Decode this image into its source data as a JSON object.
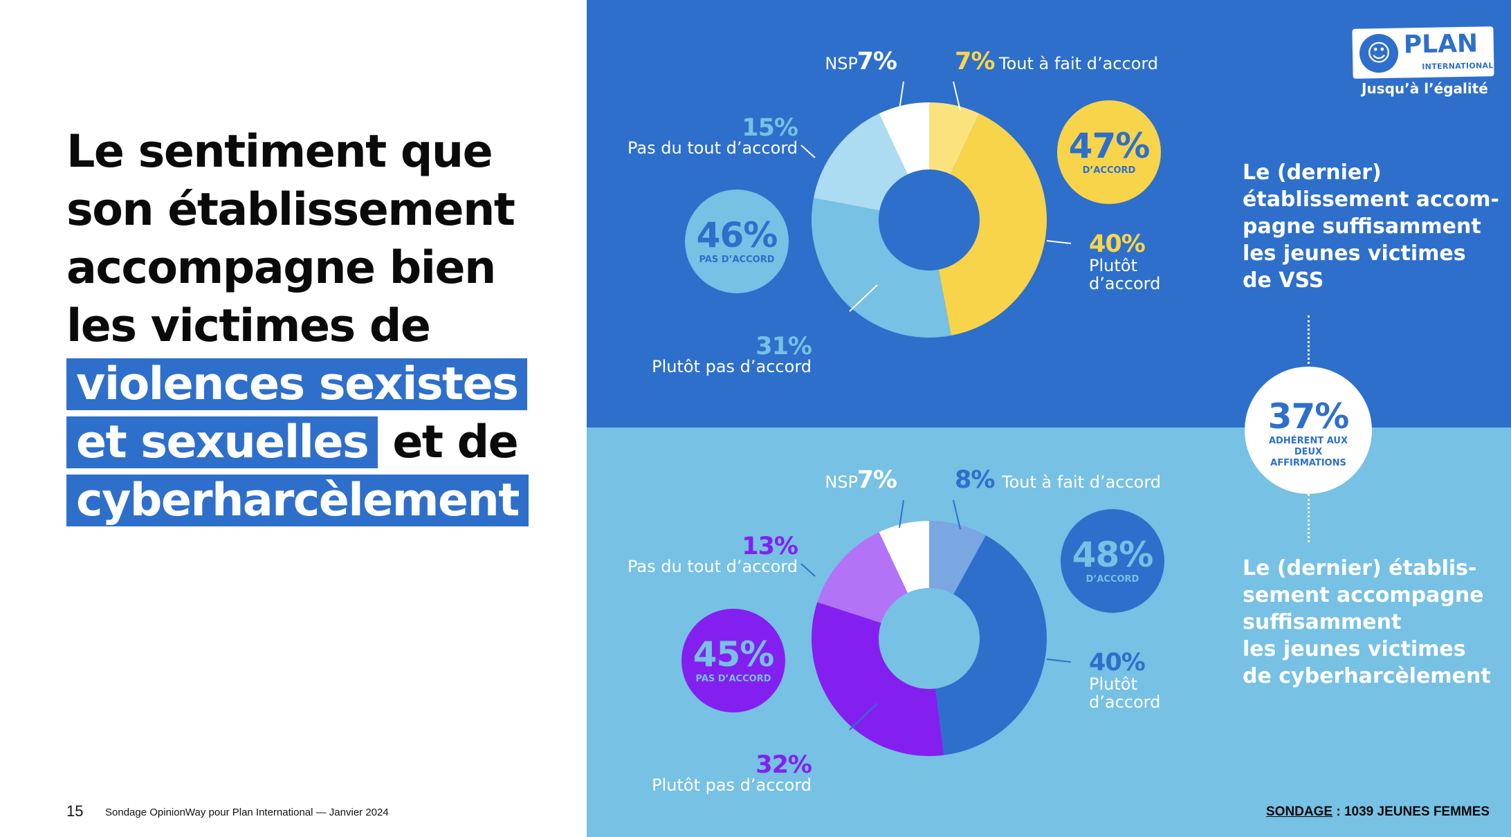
{
  "headline": {
    "part1": "Le sentiment que son établissement accompagne bien les victimes de",
    "highlight1": "violences sexistes et sexuelles",
    "part2": "et de",
    "highlight2": "cyberharcèlement"
  },
  "footer": {
    "page_number": "15",
    "source": "Sondage OpinionWay pour Plan International — Janvier 2024",
    "sondage_label": "SONDAGE",
    "sondage_value": " : 1039 JEUNES FEMMES"
  },
  "logo": {
    "name": "PLAN",
    "sub": "INTERNATIONAL",
    "tagline": "Jusqu’à l’égalité"
  },
  "colors": {
    "top_bg": "#2e6fcb",
    "bottom_bg": "#76c1e4",
    "top_slices": [
      "#fbe27d",
      "#f7d44a",
      "#76c1e4",
      "#acdcf1",
      "#ffffff"
    ],
    "top_label_colors": [
      "#f9d64a",
      "#f9d64a",
      "#76c1e4",
      "#76c1e4",
      "#ffffff"
    ],
    "bottom_slices": [
      "#7aa6e2",
      "#2e6fcb",
      "#8320f0",
      "#b373f6",
      "#ffffff"
    ],
    "bottom_label_colors": [
      "#2e6fcb",
      "#2e6fcb",
      "#8320f0",
      "#8320f0",
      "#ffffff"
    ],
    "top_agree_circle": "#f7d44a",
    "top_agree_text": "#2e6fcb",
    "top_disagree_circle": "#76c1e4",
    "top_disagree_text": "#2e6fcb",
    "bottom_agree_circle": "#2e6fcb",
    "bottom_agree_text": "#76c1e4",
    "bottom_disagree_circle": "#8320f0",
    "bottom_disagree_text": "#76c1e4"
  },
  "chart_data": [
    {
      "type": "pie",
      "title": "Le (dernier) établissement accom-\npagne suffisamment\nles jeunes victimes\nde VSS",
      "categories": [
        "Tout à fait d’accord",
        "Plutôt d’accord",
        "Plutôt pas d’accord",
        "Pas du tout d’accord",
        "NSP"
      ],
      "labels": [
        {
          "pct": "7%",
          "text": "Tout à fait d’accord"
        },
        {
          "pct": "40%",
          "text1": "Plutôt",
          "text2": "d’accord"
        },
        {
          "pct": "31%",
          "text": "Plutôt pas d’accord"
        },
        {
          "pct": "15%",
          "text": "Pas du tout d’accord"
        },
        {
          "pct": "7%",
          "text": "NSP"
        }
      ],
      "values": [
        7,
        40,
        31,
        15,
        7
      ],
      "summary": [
        {
          "pct": "47%",
          "label": "D’ACCORD"
        },
        {
          "pct": "46%",
          "label": "PAS D’ACCORD"
        }
      ]
    },
    {
      "type": "pie",
      "title": "Le (dernier) établis-\nsement accompagne\nsuffisamment\nles jeunes victimes\nde cyberharcèlement",
      "categories": [
        "Tout à fait d’accord",
        "Plutôt d’accord",
        "Plutôt pas d’accord",
        "Pas du tout d’accord",
        "NSP"
      ],
      "labels": [
        {
          "pct": "8%",
          "text": "Tout à fait d’accord"
        },
        {
          "pct": "40%",
          "text1": "Plutôt",
          "text2": "d’accord"
        },
        {
          "pct": "32%",
          "text": "Plutôt pas d’accord"
        },
        {
          "pct": "13%",
          "text": "Pas du tout d’accord"
        },
        {
          "pct": "7%",
          "text": "NSP"
        }
      ],
      "values": [
        8,
        40,
        32,
        13,
        7
      ],
      "summary": [
        {
          "pct": "48%",
          "label": "D’ACCORD"
        },
        {
          "pct": "45%",
          "label": "PAS D’ACCORD"
        }
      ]
    }
  ],
  "both": {
    "pct": "37%",
    "label": "ADHÉRENT AUX DEUX AFFIRMATIONS"
  }
}
